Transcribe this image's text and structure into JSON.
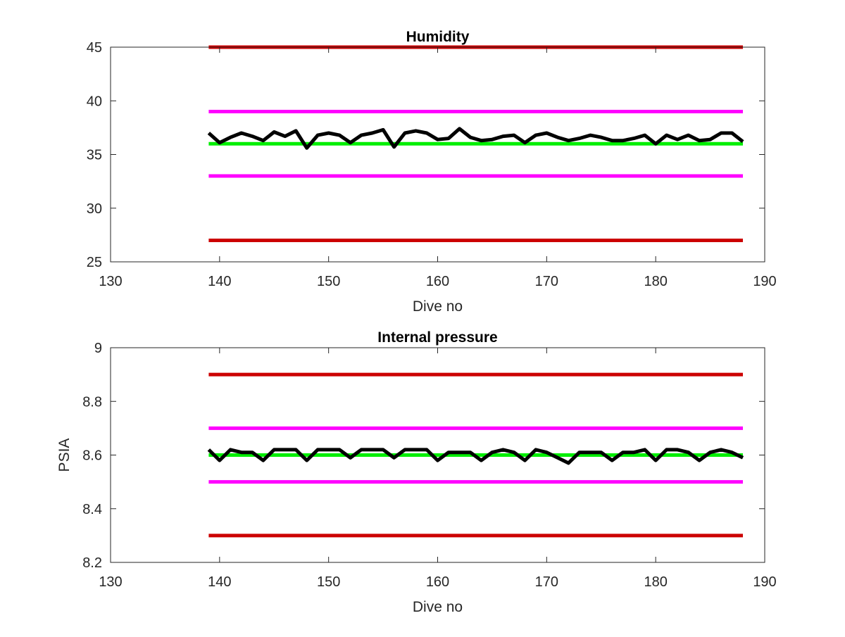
{
  "chart_data": [
    {
      "type": "line",
      "title": "Humidity",
      "xlabel": "Dive no",
      "ylabel": "",
      "xlim": [
        130,
        190
      ],
      "ylim": [
        25,
        45
      ],
      "xticks": [
        130,
        140,
        150,
        160,
        170,
        180,
        190
      ],
      "yticks": [
        25,
        30,
        35,
        40,
        45
      ],
      "xtick_labels": [
        "130",
        "140",
        "150",
        "160",
        "170",
        "180",
        "190"
      ],
      "ytick_labels": [
        "25",
        "30",
        "35",
        "40",
        "45"
      ],
      "grid": false,
      "series": [
        {
          "color": "#cc0000",
          "x": [
            139,
            188
          ],
          "y": [
            45,
            45
          ]
        },
        {
          "color": "#ff00ff",
          "x": [
            139,
            188
          ],
          "y": [
            39,
            39
          ]
        },
        {
          "color": "#00ee00",
          "x": [
            139,
            188
          ],
          "y": [
            36,
            36
          ]
        },
        {
          "color": "#ff00ff",
          "x": [
            139,
            188
          ],
          "y": [
            33,
            33
          ]
        },
        {
          "color": "#cc0000",
          "x": [
            139,
            188
          ],
          "y": [
            27,
            27
          ]
        },
        {
          "color": "#000000",
          "x": [
            139,
            140,
            141,
            142,
            143,
            144,
            145,
            146,
            147,
            148,
            149,
            150,
            151,
            152,
            153,
            154,
            155,
            156,
            157,
            158,
            159,
            160,
            161,
            162,
            163,
            164,
            165,
            166,
            167,
            168,
            169,
            170,
            171,
            172,
            173,
            174,
            175,
            176,
            177,
            178,
            179,
            180,
            181,
            182,
            183,
            184,
            185,
            186,
            187,
            188
          ],
          "y": [
            37.0,
            36.1,
            36.6,
            37.0,
            36.7,
            36.3,
            37.1,
            36.7,
            37.2,
            35.6,
            36.8,
            37.0,
            36.8,
            36.1,
            36.8,
            37.0,
            37.3,
            35.7,
            37.0,
            37.2,
            37.0,
            36.4,
            36.5,
            37.4,
            36.6,
            36.3,
            36.4,
            36.7,
            36.8,
            36.1,
            36.8,
            37.0,
            36.6,
            36.3,
            36.5,
            36.8,
            36.6,
            36.3,
            36.3,
            36.5,
            36.8,
            36.0,
            36.8,
            36.4,
            36.8,
            36.3,
            36.4,
            37.0,
            37.0,
            36.2
          ]
        }
      ]
    },
    {
      "type": "line",
      "title": "Internal pressure",
      "xlabel": "Dive no",
      "ylabel": "PSIA",
      "xlim": [
        130,
        190
      ],
      "ylim": [
        8.2,
        9.0
      ],
      "xticks": [
        130,
        140,
        150,
        160,
        170,
        180,
        190
      ],
      "yticks": [
        8.2,
        8.4,
        8.6,
        8.8,
        9.0
      ],
      "xtick_labels": [
        "130",
        "140",
        "150",
        "160",
        "170",
        "180",
        "190"
      ],
      "ytick_labels": [
        "8.2",
        "8.4",
        "8.6",
        "8.8",
        "9"
      ],
      "grid": false,
      "series": [
        {
          "color": "#cc0000",
          "x": [
            139,
            188
          ],
          "y": [
            8.9,
            8.9
          ]
        },
        {
          "color": "#ff00ff",
          "x": [
            139,
            188
          ],
          "y": [
            8.7,
            8.7
          ]
        },
        {
          "color": "#00ee00",
          "x": [
            139,
            188
          ],
          "y": [
            8.6,
            8.6
          ]
        },
        {
          "color": "#ff00ff",
          "x": [
            139,
            188
          ],
          "y": [
            8.5,
            8.5
          ]
        },
        {
          "color": "#cc0000",
          "x": [
            139,
            188
          ],
          "y": [
            8.3,
            8.3
          ]
        },
        {
          "color": "#000000",
          "x": [
            139,
            140,
            141,
            142,
            143,
            144,
            145,
            146,
            147,
            148,
            149,
            150,
            151,
            152,
            153,
            154,
            155,
            156,
            157,
            158,
            159,
            160,
            161,
            162,
            163,
            164,
            165,
            166,
            167,
            168,
            169,
            170,
            171,
            172,
            173,
            174,
            175,
            176,
            177,
            178,
            179,
            180,
            181,
            182,
            183,
            184,
            185,
            186,
            187,
            188
          ],
          "y": [
            8.62,
            8.58,
            8.62,
            8.61,
            8.61,
            8.58,
            8.62,
            8.62,
            8.62,
            8.58,
            8.62,
            8.62,
            8.62,
            8.59,
            8.62,
            8.62,
            8.62,
            8.59,
            8.62,
            8.62,
            8.62,
            8.58,
            8.61,
            8.61,
            8.61,
            8.58,
            8.61,
            8.62,
            8.61,
            8.58,
            8.62,
            8.61,
            8.59,
            8.57,
            8.61,
            8.61,
            8.61,
            8.58,
            8.61,
            8.61,
            8.62,
            8.58,
            8.62,
            8.62,
            8.61,
            8.58,
            8.61,
            8.62,
            8.61,
            8.59
          ]
        }
      ]
    }
  ]
}
